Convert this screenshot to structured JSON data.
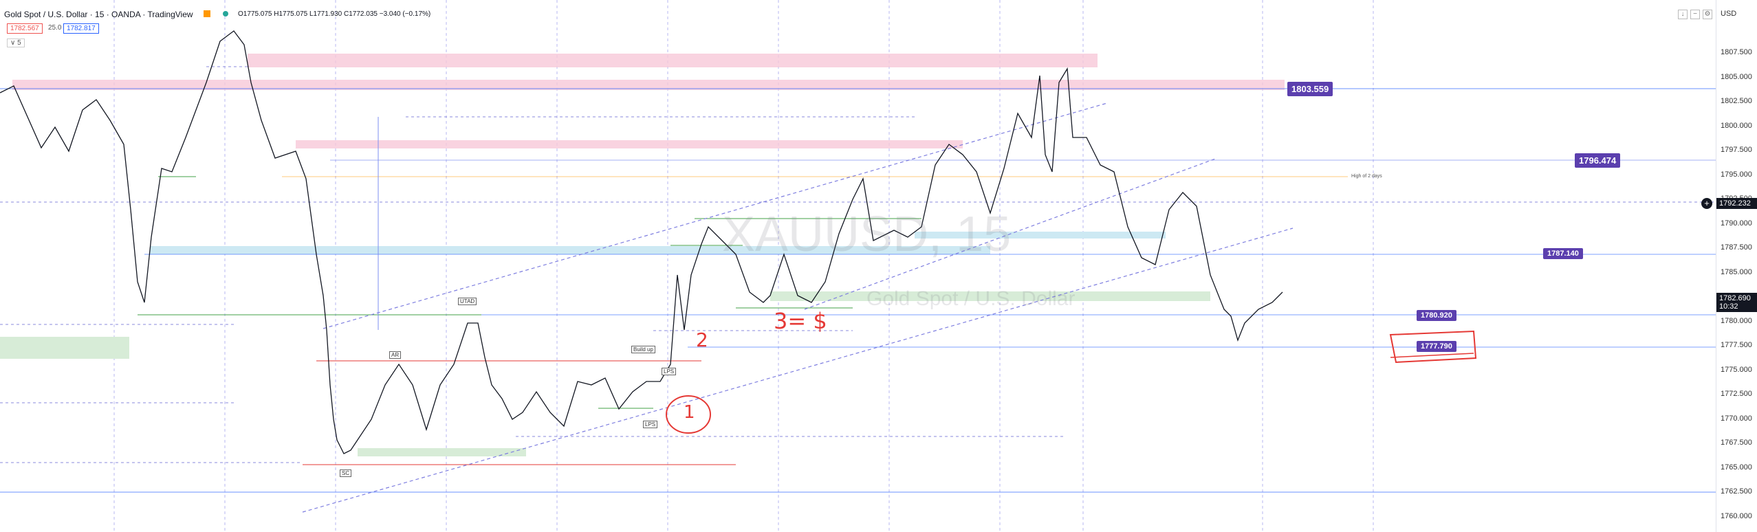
{
  "header": {
    "symbol_title": "Gold Spot / U.S. Dollar · 15 · OANDA · TradingView",
    "ohlc": "O1775.075  H1775.075  L1771.930  C1772.035  −3.040 (−0.17%)",
    "sell_price": "1782.567",
    "spread": "25.0",
    "buy_price": "1782.817",
    "indicator_toggle": "∨ 5"
  },
  "watermark": {
    "symbol": "XAUUSD, 15",
    "name": "Gold Spot / U.S. Dollar"
  },
  "axis": {
    "currency": "USD",
    "ticks": [
      "1807.500",
      "1805.000",
      "1802.500",
      "1800.000",
      "1797.500",
      "1795.000",
      "1792.500",
      "1790.000",
      "1787.500",
      "1785.000",
      "1782.500",
      "1780.000",
      "1777.500",
      "1775.000",
      "1772.500",
      "1770.000",
      "1767.500",
      "1765.000",
      "1762.500",
      "1760.000"
    ],
    "current_price": "1782.690",
    "countdown": "10:32",
    "hover_price": "1792.232"
  },
  "price_tags": [
    {
      "text": "1803.559",
      "color": "#5b3fae"
    },
    {
      "text": "1796.474",
      "color": "#5b3fae"
    },
    {
      "text": "1787.140",
      "color": "#5b3fae"
    },
    {
      "text": "1780.920",
      "color": "#5b3fae"
    },
    {
      "text": "1777.790",
      "color": "#5b3fae"
    }
  ],
  "annotations": {
    "high_note": "High of 2 days",
    "labels": [
      "UTAD",
      "AR",
      "Build up",
      "LPS",
      "LPS",
      "SC"
    ]
  },
  "handwritten": {
    "one": "1",
    "two": "2",
    "three": "3= $"
  },
  "toolbar_icons": [
    "arrow-icon",
    "collapse-icon",
    "gear-icon",
    "fullscreen-icon"
  ]
}
